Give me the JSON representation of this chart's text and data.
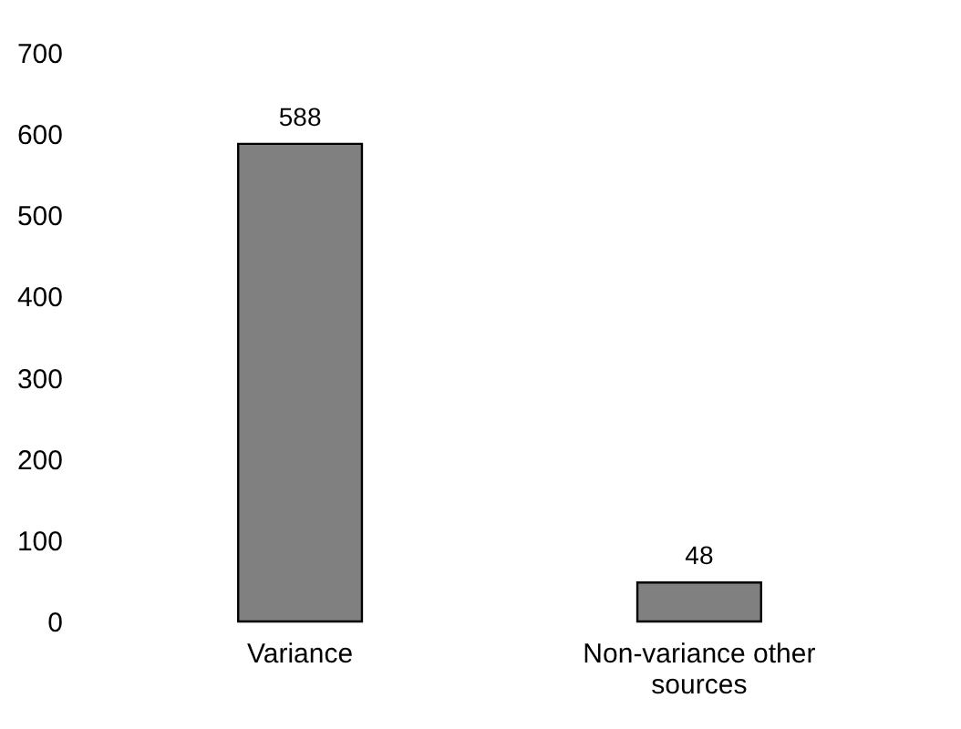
{
  "chart_data": {
    "type": "bar",
    "categories": [
      "Variance",
      "Non-variance other sources"
    ],
    "values": [
      588,
      48
    ],
    "color": "#808080",
    "ylim": [
      0,
      700
    ],
    "yticks": [
      0,
      100,
      200,
      300,
      400,
      500,
      600,
      700
    ],
    "grid": false,
    "data_labels": true
  }
}
